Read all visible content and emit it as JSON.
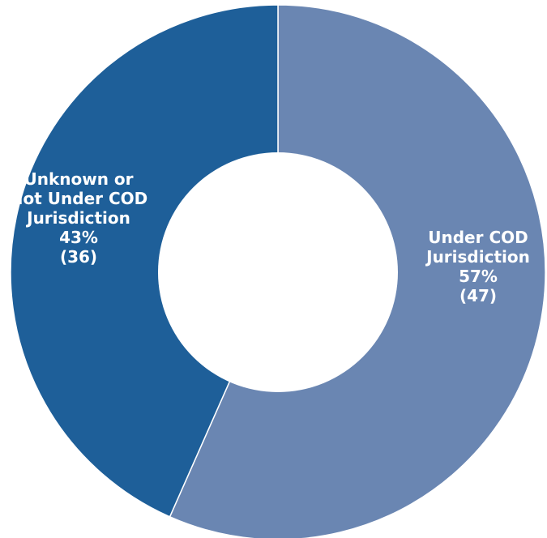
{
  "chart_data": {
    "type": "pie",
    "donut": true,
    "slices": [
      {
        "label_lines": [
          "Under COD",
          "Jurisdiction"
        ],
        "percent_label": "57%",
        "count_label": "(47)",
        "value": 47,
        "color": "#6a86b2"
      },
      {
        "label_lines": [
          "Unknown or",
          "Not Under COD",
          "Jurisdiction"
        ],
        "percent_label": "43%",
        "count_label": "(36)",
        "value": 36,
        "color": "#1e5f99"
      }
    ],
    "legend": "none",
    "slice_label_color": "#ffffff"
  }
}
